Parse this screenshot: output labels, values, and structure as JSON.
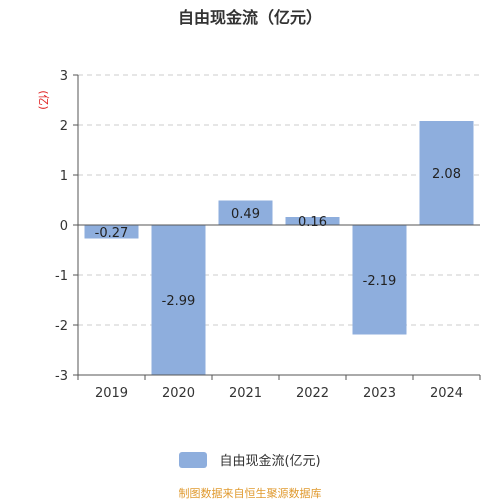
{
  "chart_data": {
    "type": "bar",
    "title": "自由现金流（亿元）",
    "ylabel": "(亿)",
    "categories": [
      "2019",
      "2020",
      "2021",
      "2022",
      "2023",
      "2024"
    ],
    "series": [
      {
        "name": "自由现金流(亿元)",
        "values": [
          -0.27,
          -2.99,
          0.49,
          0.16,
          -2.19,
          2.08
        ]
      }
    ],
    "data_labels": [
      "-0.27",
      "-2.99",
      "0.49",
      "0.16",
      "-2.19",
      "2.08"
    ],
    "y_ticks": [
      "-3",
      "-2",
      "-1",
      "0",
      "1",
      "2",
      "3"
    ],
    "ylim": [
      -3,
      3
    ],
    "grid": true,
    "legend_position": "bottom",
    "colors": {
      "bar": "#8eaedd",
      "grid": "#cccccc",
      "ylabel": "#e02020"
    }
  },
  "source": "制图数据来自恒生聚源数据库"
}
